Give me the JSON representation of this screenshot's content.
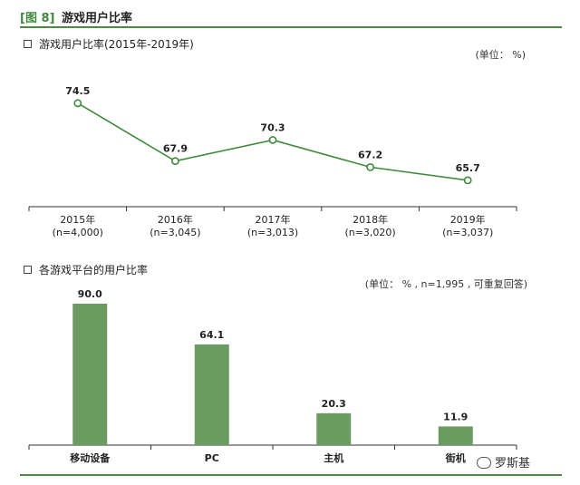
{
  "header": {
    "figure_tag": "[图 8]",
    "title": "游戏用户比率"
  },
  "section1": {
    "title": "游戏用户比率(2015年-2019年)",
    "unit": "(单位： %)"
  },
  "section2": {
    "title": "各游戏平台的用户比率",
    "unit": "(单位： % , n=1,995 , 可重复回答)"
  },
  "watermark": {
    "text": "罗斯基"
  },
  "colors": {
    "accent": "#4c8a44",
    "bar": "#6c9b62",
    "line": "#3f8a3d"
  },
  "chart_data": [
    {
      "type": "line",
      "title": "游戏用户比率(2015年-2019年)",
      "categories": [
        {
          "year": "2015年",
          "n": "(n=4,000)"
        },
        {
          "year": "2016年",
          "n": "(n=3,045)"
        },
        {
          "year": "2017年",
          "n": "(n=3,013)"
        },
        {
          "year": "2018年",
          "n": "(n=3,020)"
        },
        {
          "year": "2019年",
          "n": "(n=3,037)"
        }
      ],
      "values": [
        74.5,
        67.9,
        70.3,
        67.2,
        65.7
      ],
      "labels": [
        "74.5",
        "67.9",
        "70.3",
        "67.2",
        "65.7"
      ],
      "ylabel": "%",
      "ylim": [
        63,
        78
      ],
      "grid": false
    },
    {
      "type": "bar",
      "title": "各游戏平台的用户比率",
      "categories": [
        "移动设备",
        "PC",
        "主机",
        "街机"
      ],
      "values": [
        90.0,
        64.1,
        20.3,
        11.9
      ],
      "labels": [
        "90.0",
        "64.1",
        "20.3",
        "11.9"
      ],
      "ylabel": "%",
      "ylim": [
        0,
        100
      ],
      "grid": false
    }
  ]
}
